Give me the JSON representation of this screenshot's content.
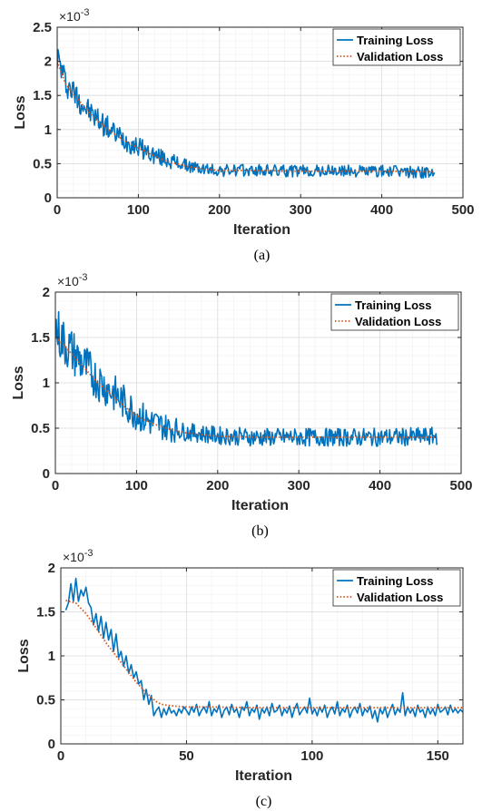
{
  "chart_data": [
    {
      "type": "line",
      "caption": "(a)",
      "xlabel": "Iteration",
      "ylabel": "Loss",
      "exponent_label": "×10",
      "exponent_power": "-3",
      "xlim": [
        0,
        500
      ],
      "ylim": [
        0,
        2.5
      ],
      "xticks": [
        "0",
        "100",
        "200",
        "300",
        "400",
        "500"
      ],
      "xtick_values": [
        0,
        100,
        200,
        300,
        400,
        500
      ],
      "yticks": [
        "0",
        "0.5",
        "1",
        "1.5",
        "2",
        "2.5"
      ],
      "ytick_values": [
        0,
        0.5,
        1,
        1.5,
        2,
        2.5
      ],
      "grid": true,
      "legend_position": "top-right",
      "x_end": 465,
      "series": [
        {
          "name": "Training Loss",
          "color": "#0072BD",
          "style": "solid",
          "x": [
            0,
            10,
            20,
            30,
            40,
            50,
            60,
            70,
            80,
            90,
            100,
            110,
            120,
            130,
            140,
            150,
            160,
            170,
            180,
            200,
            250,
            300,
            350,
            400,
            465
          ],
          "values": [
            2.08,
            1.7,
            1.55,
            1.4,
            1.25,
            1.15,
            1.05,
            0.95,
            0.88,
            0.8,
            0.75,
            0.68,
            0.62,
            0.58,
            0.54,
            0.5,
            0.47,
            0.44,
            0.42,
            0.4,
            0.4,
            0.39,
            0.39,
            0.39,
            0.37
          ],
          "noise": 0.22,
          "noise_tail": 0.09
        },
        {
          "name": "Validation Loss",
          "color": "#D95319",
          "style": "dotted",
          "x": [
            0,
            10,
            20,
            30,
            40,
            50,
            60,
            70,
            80,
            90,
            100,
            110,
            120,
            130,
            140,
            150,
            160,
            170,
            180,
            200,
            250,
            300,
            350,
            400,
            465
          ],
          "values": [
            2.0,
            1.68,
            1.52,
            1.38,
            1.24,
            1.13,
            1.03,
            0.94,
            0.86,
            0.79,
            0.73,
            0.67,
            0.61,
            0.56,
            0.52,
            0.49,
            0.46,
            0.44,
            0.42,
            0.4,
            0.4,
            0.39,
            0.39,
            0.39,
            0.38
          ]
        }
      ]
    },
    {
      "type": "line",
      "caption": "(b)",
      "xlabel": "Iteration",
      "ylabel": "Loss",
      "exponent_label": "×10",
      "exponent_power": "-3",
      "xlim": [
        0,
        500
      ],
      "ylim": [
        0,
        2
      ],
      "xticks": [
        "0",
        "100",
        "200",
        "300",
        "400",
        "500"
      ],
      "xtick_values": [
        0,
        100,
        200,
        300,
        400,
        500
      ],
      "yticks": [
        "0",
        "0.5",
        "1",
        "1.5",
        "2"
      ],
      "ytick_values": [
        0,
        0.5,
        1,
        1.5,
        2
      ],
      "grid": true,
      "legend_position": "top-right",
      "x_end": 470,
      "series": [
        {
          "name": "Training Loss",
          "color": "#0072BD",
          "style": "solid",
          "x": [
            0,
            10,
            20,
            30,
            40,
            50,
            60,
            70,
            80,
            90,
            100,
            110,
            120,
            130,
            140,
            150,
            160,
            180,
            200,
            250,
            300,
            350,
            400,
            470
          ],
          "values": [
            1.6,
            1.45,
            1.35,
            1.25,
            1.15,
            1.05,
            0.97,
            0.9,
            0.82,
            0.74,
            0.66,
            0.6,
            0.56,
            0.53,
            0.5,
            0.48,
            0.46,
            0.44,
            0.42,
            0.4,
            0.4,
            0.4,
            0.4,
            0.41
          ],
          "noise": 0.28,
          "noise_tail": 0.1
        },
        {
          "name": "Validation Loss",
          "color": "#D95319",
          "style": "dotted",
          "x": [
            0,
            10,
            20,
            30,
            40,
            50,
            60,
            70,
            80,
            90,
            100,
            110,
            120,
            130,
            140,
            150,
            160,
            180,
            200,
            250,
            300,
            350,
            400,
            470
          ],
          "values": [
            1.5,
            1.42,
            1.32,
            1.22,
            1.12,
            1.02,
            0.94,
            0.86,
            0.78,
            0.7,
            0.64,
            0.59,
            0.55,
            0.52,
            0.49,
            0.47,
            0.45,
            0.43,
            0.41,
            0.4,
            0.4,
            0.4,
            0.4,
            0.4
          ]
        }
      ]
    },
    {
      "type": "line",
      "caption": "(c)",
      "xlabel": "Iteration",
      "ylabel": "Loss",
      "exponent_label": "×10",
      "exponent_power": "-3",
      "xlim": [
        0,
        160
      ],
      "ylim": [
        0,
        2
      ],
      "xticks": [
        "0",
        "50",
        "100",
        "150"
      ],
      "xtick_values": [
        0,
        50,
        100,
        150
      ],
      "yticks": [
        "0",
        "0.5",
        "1",
        "1.5",
        "2"
      ],
      "ytick_values": [
        0,
        0.5,
        1,
        1.5,
        2
      ],
      "grid": true,
      "legend_position": "top-right",
      "series": [
        {
          "name": "Training Loss",
          "color": "#0072BD",
          "style": "solid",
          "x": [
            2,
            3,
            4,
            5,
            6,
            7,
            8,
            9,
            10,
            11,
            12,
            13,
            14,
            15,
            16,
            17,
            18,
            19,
            20,
            21,
            22,
            23,
            24,
            25,
            26,
            27,
            28,
            29,
            30,
            31,
            32,
            33,
            34,
            35,
            36,
            37,
            38,
            39,
            40,
            41,
            42,
            43,
            44,
            45,
            46,
            47,
            48,
            49,
            50,
            51,
            52,
            53,
            54,
            55,
            56,
            57,
            58,
            59,
            60,
            61,
            62,
            63,
            64,
            65,
            66,
            67,
            68,
            69,
            70,
            71,
            72,
            73,
            74,
            75,
            76,
            77,
            78,
            79,
            80,
            81,
            82,
            83,
            84,
            85,
            86,
            87,
            88,
            89,
            90,
            91,
            92,
            93,
            94,
            95,
            96,
            97,
            98,
            99,
            100,
            101,
            102,
            103,
            104,
            105,
            106,
            107,
            108,
            109,
            110,
            111,
            112,
            113,
            114,
            115,
            116,
            117,
            118,
            119,
            120,
            121,
            122,
            123,
            124,
            125,
            126,
            127,
            128,
            129,
            130,
            131,
            132,
            133,
            134,
            135,
            136,
            137,
            138,
            139,
            140,
            141,
            142,
            143,
            144,
            145,
            146,
            147,
            148,
            149,
            150,
            151,
            152,
            153,
            154,
            155,
            156,
            157,
            158,
            159,
            160
          ],
          "values": [
            1.52,
            1.6,
            1.82,
            1.62,
            1.88,
            1.62,
            1.75,
            1.68,
            1.78,
            1.6,
            1.55,
            1.35,
            1.48,
            1.28,
            1.45,
            1.2,
            1.38,
            1.18,
            1.3,
            1.05,
            1.25,
            0.98,
            1.05,
            0.88,
            1.0,
            0.8,
            0.9,
            0.75,
            0.82,
            0.68,
            0.72,
            0.5,
            0.62,
            0.45,
            0.55,
            0.32,
            0.38,
            0.42,
            0.3,
            0.4,
            0.33,
            0.42,
            0.35,
            0.38,
            0.32,
            0.4,
            0.35,
            0.42,
            0.38,
            0.33,
            0.42,
            0.36,
            0.45,
            0.32,
            0.38,
            0.42,
            0.35,
            0.48,
            0.32,
            0.4,
            0.36,
            0.44,
            0.3,
            0.38,
            0.42,
            0.33,
            0.45,
            0.36,
            0.4,
            0.3,
            0.42,
            0.38,
            0.48,
            0.32,
            0.4,
            0.36,
            0.44,
            0.28,
            0.4,
            0.35,
            0.42,
            0.32,
            0.46,
            0.36,
            0.38,
            0.44,
            0.32,
            0.4,
            0.35,
            0.43,
            0.3,
            0.4,
            0.46,
            0.33,
            0.38,
            0.42,
            0.35,
            0.52,
            0.34,
            0.4,
            0.32,
            0.42,
            0.36,
            0.44,
            0.3,
            0.38,
            0.42,
            0.34,
            0.48,
            0.32,
            0.4,
            0.36,
            0.44,
            0.3,
            0.38,
            0.42,
            0.35,
            0.46,
            0.32,
            0.4,
            0.36,
            0.43,
            0.29,
            0.38,
            0.25,
            0.4,
            0.34,
            0.42,
            0.3,
            0.38,
            0.45,
            0.33,
            0.4,
            0.36,
            0.58,
            0.32,
            0.42,
            0.35,
            0.4,
            0.31,
            0.44,
            0.36,
            0.39,
            0.3,
            0.42,
            0.34,
            0.4,
            0.32,
            0.45,
            0.36,
            0.38,
            0.42,
            0.33,
            0.44,
            0.36,
            0.4,
            0.35,
            0.39,
            0.36
          ]
        },
        {
          "name": "Validation Loss",
          "color": "#D95319",
          "style": "dotted",
          "x": [
            2,
            6,
            10,
            14,
            18,
            22,
            26,
            30,
            34,
            38,
            40,
            42,
            45,
            50,
            60,
            80,
            100,
            120,
            140,
            160
          ],
          "values": [
            1.63,
            1.6,
            1.48,
            1.32,
            1.15,
            1.0,
            0.85,
            0.7,
            0.58,
            0.48,
            0.45,
            0.44,
            0.43,
            0.42,
            0.42,
            0.41,
            0.41,
            0.41,
            0.41,
            0.41
          ]
        }
      ]
    }
  ]
}
